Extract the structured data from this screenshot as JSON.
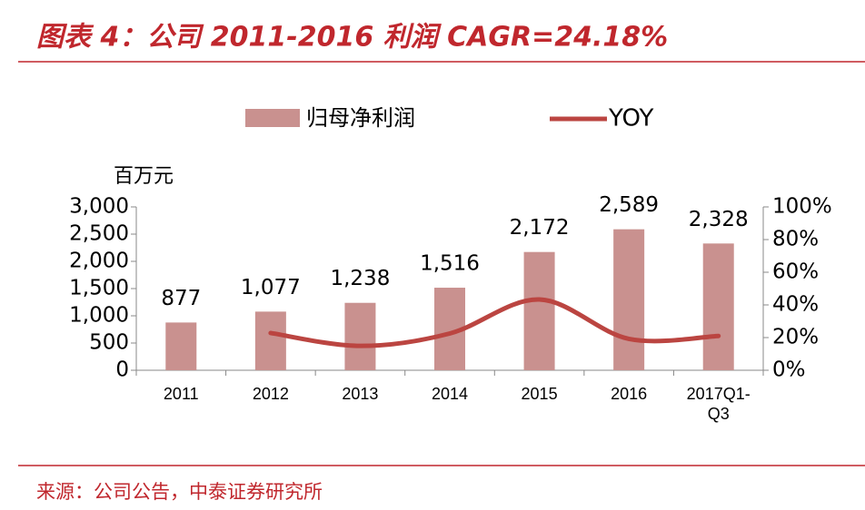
{
  "chart_data": {
    "type": "bar_line",
    "title": "图表 4：公司 2011-2016 利润 CAGR=24.18%",
    "y_label": "百万元",
    "source": "来源：公司公告，中泰证券研究所",
    "categories": [
      "2011",
      "2012",
      "2013",
      "2014",
      "2015",
      "2016",
      "2017Q1-Q3"
    ],
    "series": [
      {
        "name": "归母净利润",
        "color": "#c9918f",
        "type": "bar",
        "values": [
          877,
          1077,
          1238,
          1516,
          2172,
          2589,
          2328
        ],
        "value_labels": [
          "877",
          "1,077",
          "1,238",
          "1,516",
          "2,172",
          "2,589",
          "2,328"
        ]
      },
      {
        "name": "YOY",
        "color": "#bb4541",
        "type": "line",
        "axis": "y2",
        "values": [
          null,
          22.8,
          14.9,
          22.5,
          43.3,
          19.2,
          21
        ]
      }
    ],
    "ylim": [
      0,
      3000
    ],
    "yticks": [
      0,
      500,
      {
        "value": 1000,
        "label": "1,000"
      },
      {
        "value": 1500,
        "label": "1,500"
      },
      {
        "value": 2000,
        "label": "2,000"
      },
      {
        "value": 2500,
        "label": "2,500"
      },
      {
        "value": 3000,
        "label": "3,000"
      }
    ],
    "y2lim": [
      0,
      100
    ],
    "y2ticks": [
      {
        "value": 0,
        "label": "0%"
      },
      {
        "value": 20,
        "label": "20%"
      },
      {
        "value": 40,
        "label": "40%"
      },
      {
        "value": 60,
        "label": "60%"
      },
      {
        "value": 80,
        "label": "80%"
      },
      {
        "value": 100,
        "label": "100%"
      }
    ]
  }
}
